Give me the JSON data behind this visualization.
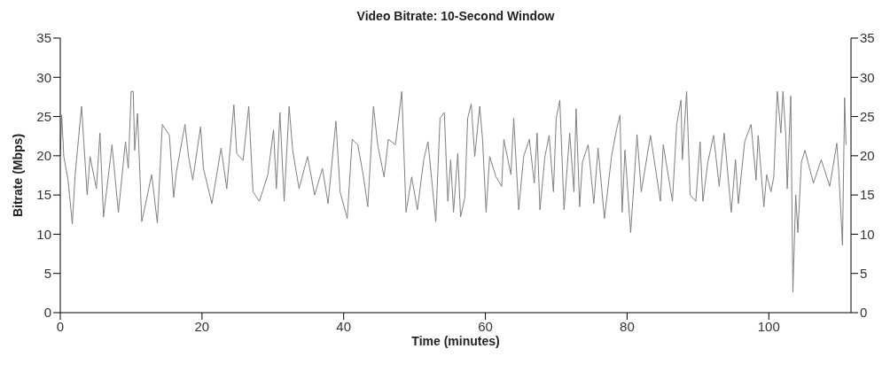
{
  "chart_data": {
    "type": "line",
    "title": "Video Bitrate: 10-Second Window",
    "xlabel": "Time (minutes)",
    "ylabel": "Bitrate (Mbps)",
    "x": [
      0,
      0.2,
      0.5,
      1.1,
      1.7,
      2.1,
      3.0,
      3.8,
      4.2,
      5.1,
      5.6,
      6.1,
      7.3,
      8.2,
      9.2,
      9.6,
      10.0,
      10.3,
      10.5,
      10.9,
      11.5,
      12.3,
      12.9,
      13.7,
      14.4,
      15.4,
      16.0,
      16.4,
      17.6,
      18.1,
      18.7,
      19.8,
      20.2,
      21.4,
      22.7,
      23.5,
      24.5,
      24.9,
      25.8,
      26.6,
      27.2,
      28.1,
      29.3,
      30.1,
      30.5,
      31.0,
      31.6,
      32.3,
      32.8,
      33.7,
      34.9,
      35.9,
      37.0,
      37.8,
      38.9,
      39.5,
      40.5,
      41.2,
      42.0,
      42.8,
      43.4,
      44.2,
      44.8,
      45.7,
      46.3,
      47.3,
      48.2,
      48.8,
      49.6,
      50.4,
      51.3,
      51.9,
      53.0,
      53.6,
      54.2,
      54.7,
      55.1,
      55.5,
      56.1,
      56.5,
      57.1,
      57.5,
      58.0,
      58.5,
      59.2,
      59.6,
      60.1,
      60.6,
      61.5,
      62.3,
      62.6,
      63.6,
      64.0,
      64.7,
      65.4,
      66.2,
      66.9,
      67.3,
      67.7,
      68.4,
      69.0,
      69.6,
      70.0,
      70.5,
      71.1,
      71.9,
      72.5,
      72.8,
      73.3,
      73.7,
      74.5,
      75.3,
      75.9,
      76.8,
      77.8,
      78.5,
      79.0,
      79.3,
      79.7,
      80.5,
      81.0,
      81.4,
      82.0,
      83.3,
      84.7,
      85.1,
      86.4,
      87.0,
      87.6,
      87.8,
      88.4,
      88.9,
      89.7,
      90.3,
      90.7,
      91.4,
      92.2,
      93.0,
      93.7,
      94.7,
      95.3,
      95.7,
      96.6,
      97.5,
      98.2,
      98.5,
      99.3,
      99.7,
      100.3,
      100.7,
      101.2,
      101.7,
      102.0,
      102.4,
      102.6,
      103.1,
      103.4,
      103.8,
      104.1,
      104.6,
      105.1,
      106.3,
      107.4,
      108.6,
      109.6,
      109.9,
      110.4,
      110.7,
      110.9
    ],
    "values": [
      20,
      25.2,
      19.9,
      16.9,
      11.3,
      17.6,
      26.3,
      15,
      19.9,
      15.8,
      22.9,
      12.2,
      21.4,
      12.8,
      21.8,
      18.4,
      28.2,
      28.2,
      20.7,
      25.4,
      11.6,
      15,
      17.6,
      11.4,
      24,
      22.6,
      14.7,
      18,
      24,
      19.9,
      16.9,
      23.7,
      18.4,
      13.9,
      21,
      15.8,
      26.5,
      20.3,
      19.4,
      26.3,
      15.4,
      14.2,
      17.6,
      23.3,
      15.8,
      25.5,
      14.2,
      26.3,
      20.7,
      15.8,
      19.9,
      15,
      18.4,
      13.9,
      24.4,
      15.4,
      12,
      22.1,
      21.4,
      17.3,
      13.5,
      26.3,
      21.4,
      17.3,
      22.1,
      21.4,
      28.2,
      12.8,
      17.3,
      13.1,
      19.5,
      21.8,
      11.6,
      24.8,
      25.5,
      14.2,
      19.5,
      12.8,
      20.3,
      12.2,
      14.7,
      24.8,
      26.6,
      19.9,
      26.3,
      22.1,
      12.8,
      19.9,
      17.3,
      16.1,
      22.1,
      17.6,
      24.8,
      13.1,
      19.9,
      22.1,
      16.5,
      22.9,
      13.1,
      19.9,
      22.6,
      15.4,
      24.8,
      27.1,
      13.1,
      22.9,
      15.4,
      26,
      13.5,
      19.2,
      21.4,
      13.9,
      21,
      12,
      19.9,
      23.3,
      25.2,
      12.8,
      20.7,
      10.2,
      16.9,
      22.7,
      15.4,
      22.6,
      14.2,
      21.4,
      14.2,
      24,
      27.1,
      19.5,
      28.2,
      15,
      14.2,
      21.8,
      14.2,
      19.2,
      22.6,
      16.1,
      22.9,
      12.8,
      19.5,
      13.9,
      21.8,
      24,
      16.9,
      22.6,
      13.5,
      17.6,
      15.4,
      17.3,
      28.2,
      22.9,
      28.2,
      22.6,
      15.8,
      27.6,
      2.6,
      15,
      10.2,
      19.2,
      20.7,
      16.5,
      19.5,
      16.1,
      21.6,
      17.6,
      8.6,
      27.4,
      21.4
    ],
    "color": "#7f7f7f",
    "marker": "none",
    "line_style": "solid",
    "grid": false,
    "legend": false,
    "xlim": [
      0,
      111.6
    ],
    "xticks": [
      0,
      20,
      40,
      60,
      80,
      100
    ],
    "ylim": [
      0,
      35
    ],
    "yticks": [
      0,
      5,
      10,
      15,
      20,
      25,
      30,
      35
    ],
    "y2lim": [
      0,
      35
    ],
    "y2ticks": [
      0,
      5,
      10,
      15,
      20,
      25,
      30,
      35
    ]
  }
}
